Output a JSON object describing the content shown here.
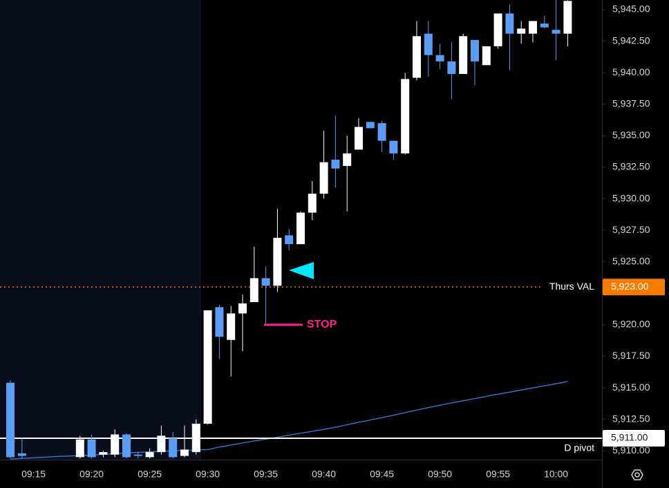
{
  "chart_data": {
    "type": "candlestick",
    "categories": [
      null,
      null,
      "09:15",
      null,
      null,
      null,
      null,
      "09:20",
      null,
      null,
      null,
      null,
      "09:25",
      null,
      null,
      null,
      null,
      "09:30",
      null,
      null,
      null,
      null,
      "09:35",
      null,
      null,
      null,
      null,
      "09:40",
      null,
      null,
      null,
      null,
      "09:45",
      null,
      null,
      null,
      null,
      "09:50",
      null,
      null,
      null,
      null,
      "09:55",
      null,
      null,
      null,
      null,
      "10:00",
      null
    ],
    "open": [
      5915.4,
      5909.8,
      null,
      null,
      null,
      null,
      5909.5,
      5910.9,
      5909.7,
      5909.7,
      5911.3,
      5909.7,
      5909.5,
      5909.9,
      5911.0,
      5909.6,
      5909.9,
      5912.15,
      5921.4,
      5918.8,
      5920.9,
      5921.8,
      5923.7,
      5923.1,
      5927.1,
      5926.4,
      5928.9,
      5930.4,
      5933.1,
      5932.6,
      5933.9,
      5936.1,
      5936.0,
      5934.6,
      5933.6,
      5939.6,
      5943.1,
      5941.4,
      5940.9,
      5939.9,
      5942.6,
      5940.6,
      5942.1,
      5944.7,
      5943.1,
      5943.1,
      5943.9,
      5943.4,
      5943.1
    ],
    "high": [
      5915.6,
      5911.0,
      null,
      null,
      null,
      null,
      5911.2,
      5911.3,
      5910.0,
      5911.7,
      5911.4,
      5909.9,
      5910.2,
      5912.0,
      5911.5,
      5912.0,
      5912.5,
      5921.15,
      5921.6,
      5921.5,
      5922.4,
      5926.2,
      5924.6,
      5929.2,
      5927.6,
      5929.0,
      5931.4,
      5935.4,
      5936.6,
      5935.0,
      5936.4,
      5936.1,
      5936.2,
      5934.6,
      5940.0,
      5944.1,
      5944.1,
      5942.3,
      5942.4,
      5943.1,
      5942.6,
      5942.1,
      5944.7,
      5945.4,
      5944.1,
      5944.1,
      5944.5,
      5945.75,
      5945.75
    ],
    "low": [
      5909.4,
      5909.4,
      null,
      null,
      null,
      null,
      5909.4,
      5909.4,
      5909.5,
      5909.5,
      5909.4,
      5909.4,
      5909.4,
      5909.7,
      5909.4,
      5909.5,
      5909.7,
      5912.1,
      5917.3,
      5915.9,
      5917.9,
      5921.8,
      5920.1,
      5922.6,
      5925.9,
      5926.4,
      5928.3,
      5930.0,
      5930.9,
      5929.0,
      5933.9,
      5935.6,
      5933.7,
      5933.1,
      5933.5,
      5939.4,
      5939.7,
      5940.3,
      5937.9,
      5939.9,
      5939.0,
      5940.6,
      5941.9,
      5940.2,
      5942.3,
      5942.4,
      5943.5,
      5941.0,
      5942.1
    ],
    "close": [
      5909.5,
      5909.6,
      null,
      null,
      null,
      null,
      5910.9,
      5909.5,
      5909.9,
      5911.3,
      5909.5,
      5909.6,
      5909.9,
      5911.2,
      5909.5,
      5910.1,
      5912.15,
      5921.15,
      5919.05,
      5920.9,
      5921.7,
      5923.7,
      5923.1,
      5926.9,
      5926.4,
      5928.9,
      5930.4,
      5932.9,
      5932.4,
      5933.6,
      5935.7,
      5935.6,
      5934.6,
      5933.6,
      5939.5,
      5942.9,
      5941.4,
      5940.9,
      5939.9,
      5942.9,
      5940.9,
      5942.1,
      5944.7,
      5943.1,
      5943.5,
      5944.1,
      5943.6,
      5943.1,
      5945.7
    ],
    "up_color": "#ffffff",
    "down_color": "#5b9cf6",
    "moving_average": {
      "color": "#2f7fe0",
      "values": [
        5909.35,
        5909.4,
        5909.45,
        5909.5,
        5909.55,
        5909.58,
        5909.62,
        5909.66,
        5909.72,
        5909.78,
        5909.83,
        5909.88,
        5909.92,
        5909.96,
        5910.0,
        5910.04,
        5910.07,
        5910.1,
        5910.3,
        5910.46,
        5910.62,
        5910.78,
        5910.93,
        5911.08,
        5911.24,
        5911.4,
        5911.55,
        5911.7,
        5911.88,
        5912.07,
        5912.26,
        5912.45,
        5912.63,
        5912.83,
        5913.03,
        5913.23,
        5913.43,
        5913.62,
        5913.8,
        5913.97,
        5914.15,
        5914.32,
        5914.5,
        5914.66,
        5914.83,
        5914.99,
        5915.16,
        5915.32,
        5915.5
      ]
    },
    "ylim": [
      5909.3,
      5945.77
    ],
    "yticks": [
      {
        "value": 5910,
        "label": "5,910.00"
      },
      {
        "value": 5912.5,
        "label": "5,912.50"
      },
      {
        "value": 5915,
        "label": "5,915.00"
      },
      {
        "value": 5917.5,
        "label": "5,917.50"
      },
      {
        "value": 5920,
        "label": "5,920.00"
      },
      {
        "value": 5925,
        "label": "5,925.00"
      },
      {
        "value": 5927.5,
        "label": "5,927.50"
      },
      {
        "value": 5930,
        "label": "5,930.00"
      },
      {
        "value": 5932.5,
        "label": "5,932.50"
      },
      {
        "value": 5935,
        "label": "5,935.00"
      },
      {
        "value": 5937.5,
        "label": "5,937.50"
      },
      {
        "value": 5940,
        "label": "5,940.00"
      },
      {
        "value": 5942.5,
        "label": "5,942.50"
      },
      {
        "value": 5945,
        "label": "5,945.00"
      }
    ],
    "levels": [
      {
        "label": "Thurs VAL",
        "value": 5923,
        "price_label": "5,923.00",
        "color": "#f57c00",
        "style": "dotted",
        "label_side": "center"
      },
      {
        "label": "D pivot",
        "value": 5911,
        "price_label": "5,911.00",
        "color": "#ffffff",
        "style": "solid",
        "label_side": "below"
      }
    ],
    "annotations": [
      {
        "text": "STOP",
        "value": 5920,
        "color": "#ff1f8e"
      }
    ]
  }
}
